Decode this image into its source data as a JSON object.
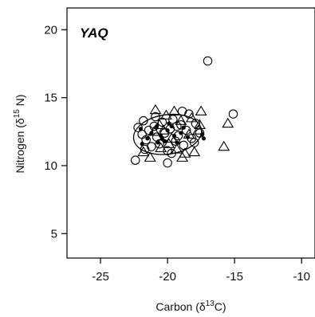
{
  "chart_data": {
    "type": "scatter",
    "title": "YAQ",
    "xlabel": {
      "prefix": "Carbon (δ",
      "sup": "13",
      "suffix": "C)"
    },
    "ylabel": {
      "prefix": "Nitrogen (δ",
      "sup": "15",
      "suffix": " N)"
    },
    "xlim": [
      -27.5,
      -9
    ],
    "ylim": [
      3.2,
      21.6
    ],
    "xticks": [
      -25,
      -20,
      -15,
      -10
    ],
    "yticks": [
      5,
      10,
      15,
      20
    ],
    "xtick_labels": [
      "-25",
      "-20",
      "-15",
      "-10"
    ],
    "ytick_labels": [
      "5",
      "10",
      "15",
      "20"
    ],
    "grid": false,
    "colors": {
      "marker": "#000000",
      "axis": "#000000"
    },
    "series": [
      {
        "marker": "circle-open",
        "points": [
          [
            -22.2,
            12.8
          ],
          [
            -21.9,
            12.3
          ],
          [
            -21.6,
            11.9
          ],
          [
            -21.4,
            12.6
          ],
          [
            -21.2,
            11.4
          ],
          [
            -21.0,
            12.9
          ],
          [
            -20.8,
            12.1
          ],
          [
            -20.6,
            11.6
          ],
          [
            -20.4,
            13.2
          ],
          [
            -20.2,
            12.4
          ],
          [
            -20.0,
            11.1
          ],
          [
            -19.8,
            12.7
          ],
          [
            -19.6,
            13.4
          ],
          [
            -19.4,
            11.8
          ],
          [
            -19.2,
            12.2
          ],
          [
            -19.0,
            13.0
          ],
          [
            -18.8,
            11.5
          ],
          [
            -18.6,
            12.6
          ],
          [
            -18.4,
            13.8
          ],
          [
            -18.2,
            12.0
          ],
          [
            -17.9,
            13.1
          ],
          [
            -17.6,
            12.4
          ],
          [
            -21.7,
            11.2
          ],
          [
            -20.9,
            13.6
          ],
          [
            -19.7,
            10.9
          ],
          [
            -18.9,
            14.0
          ],
          [
            -22.4,
            10.4
          ],
          [
            -20.0,
            10.2
          ],
          [
            -17.0,
            17.7
          ],
          [
            -15.1,
            13.8
          ],
          [
            -21.8,
            13.3
          ],
          [
            -19.3,
            12.9
          ],
          [
            -18.0,
            11.7
          ]
        ]
      },
      {
        "marker": "triangle-open",
        "points": [
          [
            -21.8,
            11.0
          ],
          [
            -21.3,
            10.6
          ],
          [
            -20.9,
            14.1
          ],
          [
            -20.5,
            11.3
          ],
          [
            -20.1,
            13.7
          ],
          [
            -19.7,
            12.0
          ],
          [
            -19.3,
            11.2
          ],
          [
            -19.0,
            13.3
          ],
          [
            -18.7,
            10.9
          ],
          [
            -18.4,
            12.3
          ],
          [
            -18.0,
            11.0
          ],
          [
            -17.7,
            12.6
          ],
          [
            -17.5,
            14.0
          ],
          [
            -17.6,
            13.0
          ],
          [
            -20.3,
            12.6
          ],
          [
            -19.5,
            14.0
          ],
          [
            -21.0,
            12.5
          ],
          [
            -18.9,
            10.6
          ],
          [
            -15.8,
            11.4
          ],
          [
            -15.5,
            13.1
          ],
          [
            -20.6,
            13.0
          ],
          [
            -19.9,
            11.6
          ],
          [
            -18.2,
            13.5
          ]
        ]
      },
      {
        "marker": "circle-filled",
        "points": [
          [
            -21.2,
            12.4
          ],
          [
            -20.8,
            12.9
          ],
          [
            -20.5,
            12.2
          ],
          [
            -20.2,
            11.8
          ],
          [
            -20.0,
            12.6
          ],
          [
            -19.7,
            12.9
          ],
          [
            -19.5,
            12.2
          ],
          [
            -19.3,
            11.7
          ],
          [
            -19.0,
            12.4
          ],
          [
            -18.8,
            12.8
          ],
          [
            -20.7,
            11.7
          ],
          [
            -21.5,
            12.0
          ],
          [
            -19.9,
            13.1
          ],
          [
            -18.5,
            12.1
          ],
          [
            -20.4,
            12.0
          ],
          [
            -17.4,
            12.3
          ],
          [
            -17.3,
            12.0
          ],
          [
            -22.0,
            12.7
          ],
          [
            -21.9,
            11.6
          ]
        ]
      }
    ],
    "ellipse": {
      "cx": -20.0,
      "cy": 12.3,
      "rx": 2.55,
      "ry": 1.45,
      "angle_deg": 8
    }
  }
}
